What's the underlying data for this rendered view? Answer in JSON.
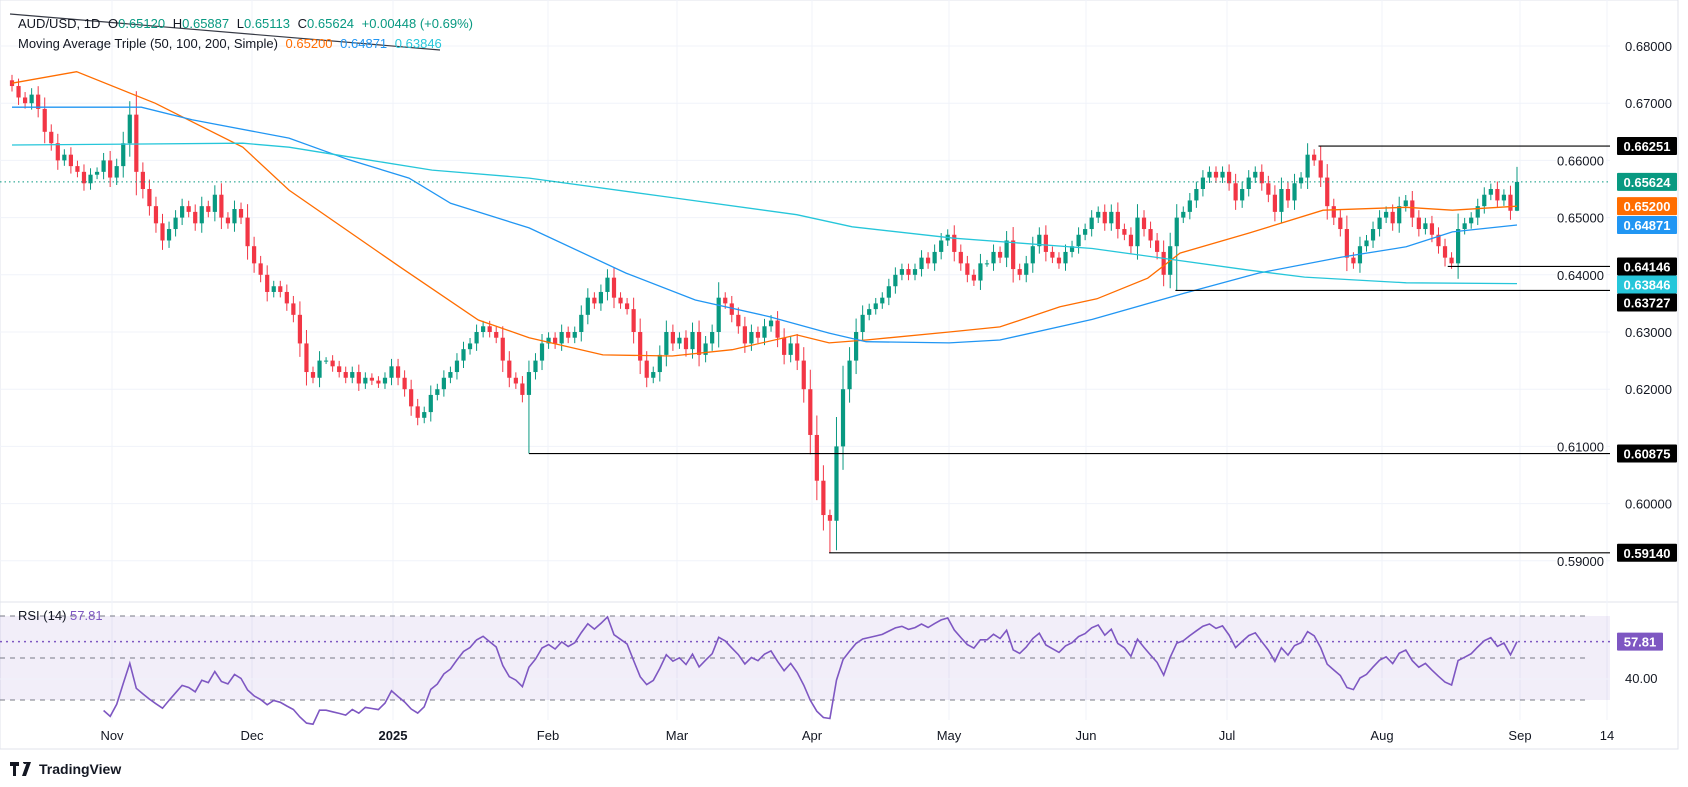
{
  "header": {
    "symbol": "AUD/USD, 1D",
    "open_label": "O",
    "open": "0.65120",
    "high_label": "H",
    "high": "0.65887",
    "low_label": "L",
    "low": "0.65113",
    "close_label": "C",
    "close": "0.65624",
    "change": "+0.00448 (+0.69%)",
    "ma_title": "Moving Average Triple (50, 100, 200, Simple)",
    "ma50": "0.65200",
    "ma100": "0.64871",
    "ma200": "0.63846"
  },
  "rsi_legend": {
    "title": "RSI (14)",
    "value": "57.81"
  },
  "brand": {
    "name": "TradingView",
    "icon": "tradingview-logo-icon"
  },
  "colors": {
    "up": "#089981",
    "down": "#F23645",
    "ma50": "#FF6D00",
    "ma100": "#2196F3",
    "ma200": "#26C6DA",
    "rsi": "#7E57C2",
    "level": "#000000"
  },
  "chart_data": [
    {
      "type": "candlestick",
      "title": "AUD/USD, 1D",
      "ylim": [
        0.585,
        0.685
      ],
      "y_ticks": [
        "0.68000",
        "0.67000",
        "0.66000",
        "0.65000",
        "0.64000",
        "0.63000",
        "0.62000",
        "0.61000",
        "0.60000",
        "0.59000"
      ],
      "x_ticks": [
        "Nov",
        "Dec",
        "2025",
        "Feb",
        "Mar",
        "Apr",
        "May",
        "Jun",
        "Jul",
        "Aug",
        "Sep",
        "14"
      ],
      "grid": true,
      "last_bar": {
        "open": 0.6512,
        "high": 0.65887,
        "low": 0.65113,
        "close": 0.65624
      },
      "closes_by_month": {
        "2024-10": [
          0.673,
          0.671,
          0.67,
          0.6715,
          0.669,
          0.665,
          0.663,
          0.66,
          0.661,
          0.659,
          0.658,
          0.656,
          0.6575,
          0.658
        ],
        "2024-11": [
          0.66,
          0.657,
          0.659,
          0.663,
          0.668,
          0.658,
          0.655,
          0.652,
          0.649,
          0.646,
          0.648,
          0.65,
          0.652,
          0.651,
          0.649,
          0.652,
          0.651,
          0.654,
          0.65,
          0.649,
          0.6515
        ],
        "2024-12": [
          0.65,
          0.645,
          0.642,
          0.64,
          0.637,
          0.638,
          0.637,
          0.635,
          0.633,
          0.628,
          0.623,
          0.622,
          0.625,
          0.625,
          0.624,
          0.623,
          0.622,
          0.623,
          0.621,
          0.622,
          0.6215
        ],
        "2025-01": [
          0.621,
          0.622,
          0.624,
          0.622,
          0.62,
          0.617,
          0.615,
          0.616,
          0.619,
          0.62,
          0.622,
          0.623,
          0.625,
          0.627,
          0.628,
          0.63,
          0.631,
          0.63,
          0.629,
          0.625,
          0.622,
          0.621
        ],
        "2025-02": [
          0.619,
          0.623,
          0.625,
          0.628,
          0.629,
          0.628,
          0.63,
          0.629,
          0.63,
          0.633,
          0.636,
          0.635,
          0.637,
          0.6395,
          0.636,
          0.635,
          0.634,
          0.63,
          0.625,
          0.622
        ],
        "2025-03": [
          0.623,
          0.626,
          0.63,
          0.628,
          0.629,
          0.627,
          0.63,
          0.626,
          0.628,
          0.63,
          0.636,
          0.635,
          0.633,
          0.631,
          0.628,
          0.63,
          0.629,
          0.631,
          0.632,
          0.629,
          0.626
        ],
        "2025-04": [
          0.628,
          0.625,
          0.62,
          0.612,
          0.604,
          0.598,
          0.597,
          0.61,
          0.62,
          0.625,
          0.63,
          0.633,
          0.634,
          0.635,
          0.636,
          0.638,
          0.64,
          0.641,
          0.64,
          0.641,
          0.643
        ],
        "2025-05": [
          0.642,
          0.644,
          0.646,
          0.647,
          0.644,
          0.642,
          0.64,
          0.639,
          0.642,
          0.642,
          0.644,
          0.643,
          0.646,
          0.641,
          0.64,
          0.642,
          0.645,
          0.647,
          0.644,
          0.643,
          0.642,
          0.644
        ],
        "2025-06": [
          0.645,
          0.647,
          0.648,
          0.65,
          0.651,
          0.649,
          0.651,
          0.648,
          0.647,
          0.645,
          0.65,
          0.648,
          0.646,
          0.644,
          0.64,
          0.645,
          0.65,
          0.651,
          0.653,
          0.655,
          0.657
        ],
        "2025-07": [
          0.658,
          0.657,
          0.658,
          0.656,
          0.653,
          0.655,
          0.657,
          0.658,
          0.656,
          0.654,
          0.651,
          0.655,
          0.653,
          0.656,
          0.657,
          0.661,
          0.66,
          0.657,
          0.652,
          0.65,
          0.648,
          0.643
        ],
        "2025-08": [
          0.642,
          0.645,
          0.646,
          0.648,
          0.65,
          0.651,
          0.649,
          0.652,
          0.653,
          0.65,
          0.648,
          0.649,
          0.647,
          0.645,
          0.643,
          0.642,
          0.648,
          0.649,
          0.65,
          0.652,
          0.654
        ],
        "2025-09": [
          0.655,
          0.653,
          0.654,
          0.6512,
          0.65624
        ]
      },
      "moving_averages": [
        {
          "name": "SMA 50",
          "color": "#FF6D00",
          "last": "0.65200",
          "points": [
            [
              "2024-10-14",
              0.6735
            ],
            [
              "2024-10-28",
              0.6755
            ],
            [
              "2024-11-14",
              0.67
            ],
            [
              "2024-12-03",
              0.6623
            ],
            [
              "2024-12-13",
              0.6548
            ],
            [
              "2025-01-06",
              0.6414
            ],
            [
              "2025-01-23",
              0.6321
            ],
            [
              "2025-02-03",
              0.629
            ],
            [
              "2025-02-19",
              0.626
            ],
            [
              "2025-03-06",
              0.6258
            ],
            [
              "2025-03-19",
              0.6269
            ],
            [
              "2025-04-02",
              0.6295
            ],
            [
              "2025-04-09",
              0.6281
            ],
            [
              "2025-04-17",
              0.6286
            ],
            [
              "2025-05-05",
              0.63
            ],
            [
              "2025-05-16",
              0.6309
            ],
            [
              "2025-05-29",
              0.6344
            ],
            [
              "2025-06-06",
              0.6358
            ],
            [
              "2025-06-17",
              0.6394
            ],
            [
              "2025-06-24",
              0.6438
            ],
            [
              "2025-07-09",
              0.6473
            ],
            [
              "2025-07-25",
              0.6513
            ],
            [
              "2025-08-12",
              0.6518
            ],
            [
              "2025-08-22",
              0.6513
            ],
            [
              "2025-09-05",
              0.652
            ]
          ]
        },
        {
          "name": "SMA 100",
          "color": "#2196F3",
          "last": "0.64871",
          "points": [
            [
              "2024-10-14",
              0.6693
            ],
            [
              "2024-11-11",
              0.6693
            ],
            [
              "2024-11-22",
              0.6671
            ],
            [
              "2024-12-13",
              0.6639
            ],
            [
              "2024-12-26",
              0.6601
            ],
            [
              "2025-01-08",
              0.6569
            ],
            [
              "2025-01-17",
              0.6525
            ],
            [
              "2025-02-03",
              0.6482
            ],
            [
              "2025-02-24",
              0.6403
            ],
            [
              "2025-03-11",
              0.6356
            ],
            [
              "2025-03-27",
              0.6327
            ],
            [
              "2025-04-09",
              0.6298
            ],
            [
              "2025-04-17",
              0.6283
            ],
            [
              "2025-05-05",
              0.6281
            ],
            [
              "2025-05-16",
              0.6286
            ],
            [
              "2025-06-05",
              0.6322
            ],
            [
              "2025-06-25",
              0.6368
            ],
            [
              "2025-07-11",
              0.6403
            ],
            [
              "2025-07-29",
              0.6431
            ],
            [
              "2025-08-12",
              0.6449
            ],
            [
              "2025-08-22",
              0.6475
            ],
            [
              "2025-09-05",
              0.6487
            ]
          ]
        },
        {
          "name": "SMA 200",
          "color": "#26C6DA",
          "last": "0.63846",
          "points": [
            [
              "2024-10-14",
              0.6627
            ],
            [
              "2024-12-03",
              0.663
            ],
            [
              "2024-12-13",
              0.6623
            ],
            [
              "2024-12-30",
              0.6601
            ],
            [
              "2025-01-13",
              0.6583
            ],
            [
              "2025-02-03",
              0.6569
            ],
            [
              "2025-03-05",
              0.6536
            ],
            [
              "2025-04-02",
              0.6505
            ],
            [
              "2025-04-14",
              0.6484
            ],
            [
              "2025-05-06",
              0.6464
            ],
            [
              "2025-06-05",
              0.6446
            ],
            [
              "2025-07-09",
              0.6408
            ],
            [
              "2025-07-21",
              0.6396
            ],
            [
              "2025-08-12",
              0.6386
            ],
            [
              "2025-09-05",
              0.63846
            ]
          ]
        }
      ],
      "levels": [
        {
          "label": "0.66251",
          "value": 0.66251,
          "from": "2025-07-24"
        },
        {
          "label": "0.64146",
          "value": 0.64146,
          "from": "2025-08-21"
        },
        {
          "label": "0.63727",
          "value": 0.63727,
          "from": "2025-06-23"
        },
        {
          "label": "0.60875",
          "value": 0.60875,
          "from": "2025-02-03"
        },
        {
          "label": "0.59140",
          "value": 0.5914,
          "from": "2025-04-09"
        }
      ],
      "current_price_label": "0.65624"
    },
    {
      "type": "line",
      "title": "RSI (14)",
      "ylim": [
        20,
        80
      ],
      "bands": [
        70,
        50,
        30
      ],
      "y_ticks": [
        "40.00"
      ],
      "last_value": "57.81"
    }
  ]
}
